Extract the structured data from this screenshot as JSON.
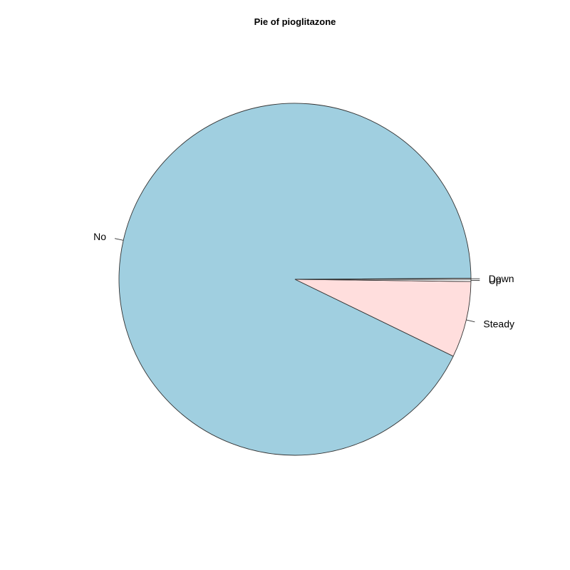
{
  "chart_data": {
    "type": "pie",
    "title": "Pie of pioglitazone",
    "categories": [
      "Down",
      "No",
      "Steady",
      "Up"
    ],
    "values": [
      0.1,
      92.7,
      7.0,
      0.2
    ],
    "colors": [
      "#FFFFFF",
      "#A0CFE0",
      "#FFDEDD",
      "#FFFFFF"
    ],
    "start_angle_degrees": 0,
    "direction": "counterclockwise"
  }
}
